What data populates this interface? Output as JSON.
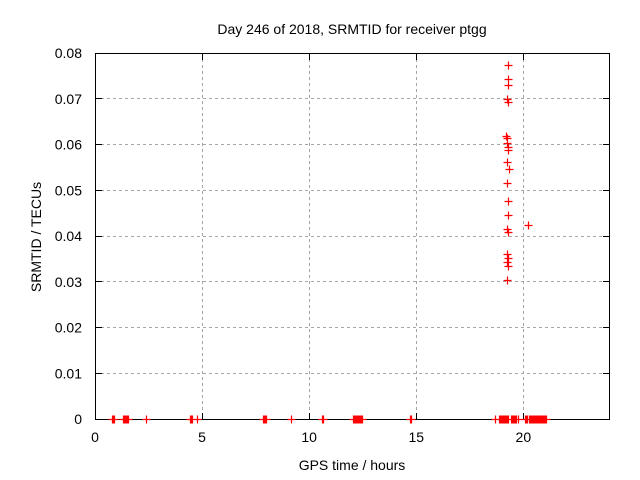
{
  "chart_data": {
    "type": "scatter",
    "title": "Day 246 of 2018, SRMTID for receiver ptgg",
    "xlabel": "GPS time / hours",
    "ylabel": "SRMTID / TECUs",
    "xlim": [
      0,
      24
    ],
    "ylim": [
      0,
      0.08
    ],
    "grid": true,
    "legend": "none",
    "marker": "plus",
    "marker_color": "#ff0000",
    "grid_color": "#a6a6a6",
    "axis_color": "#000000",
    "x_ticks": [
      {
        "v": 0,
        "label": "0"
      },
      {
        "v": 5,
        "label": "5"
      },
      {
        "v": 10,
        "label": "10"
      },
      {
        "v": 15,
        "label": "15"
      },
      {
        "v": 20,
        "label": "20"
      }
    ],
    "y_ticks": [
      {
        "v": 0.0,
        "label": "0"
      },
      {
        "v": 0.01,
        "label": "0.01"
      },
      {
        "v": 0.02,
        "label": "0.02"
      },
      {
        "v": 0.03,
        "label": "0.03"
      },
      {
        "v": 0.04,
        "label": "0.04"
      },
      {
        "v": 0.05,
        "label": "0.05"
      },
      {
        "v": 0.06,
        "label": "0.06"
      },
      {
        "v": 0.07,
        "label": "0.07"
      },
      {
        "v": 0.08,
        "label": "0.08"
      }
    ],
    "points": [
      [
        19.32,
        0.0772
      ],
      [
        19.32,
        0.0741
      ],
      [
        19.32,
        0.073
      ],
      [
        19.27,
        0.0699
      ],
      [
        19.32,
        0.0691
      ],
      [
        19.22,
        0.0617
      ],
      [
        19.26,
        0.0613
      ],
      [
        19.26,
        0.0602
      ],
      [
        19.3,
        0.0593
      ],
      [
        19.33,
        0.0586
      ],
      [
        19.28,
        0.0561
      ],
      [
        19.37,
        0.0545
      ],
      [
        19.28,
        0.0514
      ],
      [
        19.33,
        0.0476
      ],
      [
        19.3,
        0.0445
      ],
      [
        19.25,
        0.0414
      ],
      [
        19.29,
        0.0407
      ],
      [
        20.23,
        0.0424
      ],
      [
        19.26,
        0.0359
      ],
      [
        19.3,
        0.035
      ],
      [
        19.26,
        0.0341
      ],
      [
        19.3,
        0.0334
      ],
      [
        19.26,
        0.0303
      ]
    ],
    "zero_value_runs_hours": [
      [
        0.82,
        0.92
      ],
      [
        1.32,
        1.55
      ],
      [
        2.41,
        2.41
      ],
      [
        4.45,
        4.56
      ],
      [
        4.8,
        4.8
      ],
      [
        7.88,
        8.02
      ],
      [
        9.19,
        9.19
      ],
      [
        10.64,
        10.72
      ],
      [
        12.06,
        12.55
      ],
      [
        14.71,
        14.83
      ],
      [
        18.71,
        18.71
      ],
      [
        18.88,
        19.3
      ],
      [
        19.46,
        19.69
      ],
      [
        19.77,
        19.77
      ],
      [
        20.12,
        20.23
      ],
      [
        20.31,
        21.09
      ]
    ]
  }
}
